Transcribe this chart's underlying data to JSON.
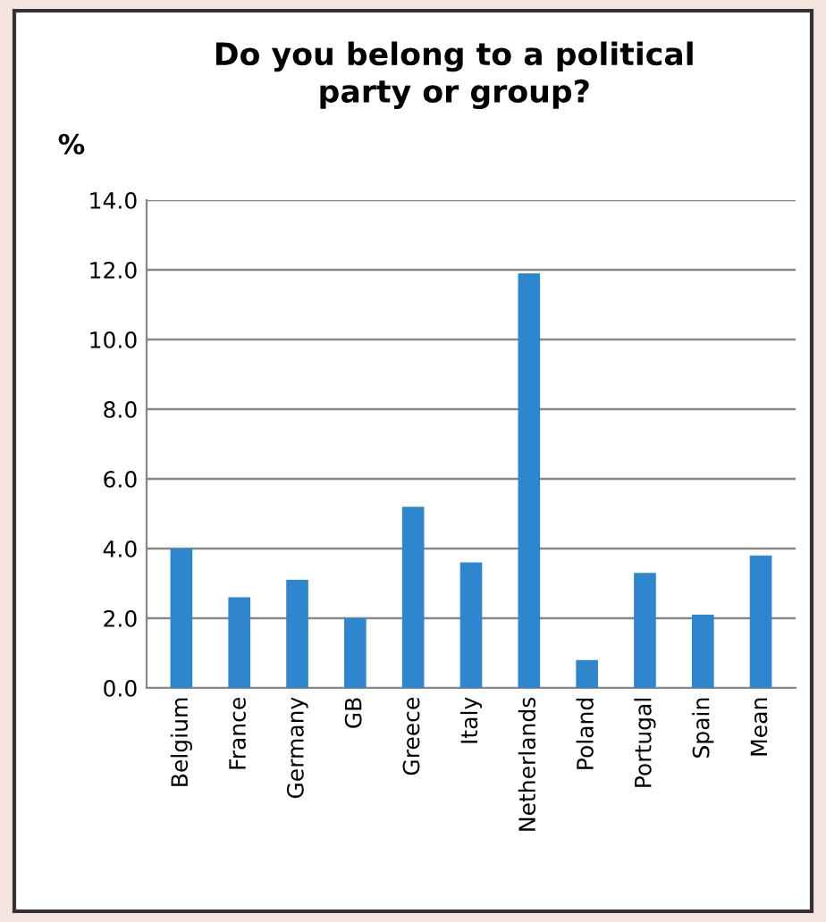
{
  "chart_data": {
    "type": "bar",
    "title": "Do you belong to a political\nparty or group?",
    "ylabel": "%",
    "categories": [
      "Belgium",
      "France",
      "Germany",
      "GB",
      "Greece",
      "Italy",
      "Netherlands",
      "Poland",
      "Portugal",
      "Spain",
      "Mean"
    ],
    "values": [
      4.0,
      2.6,
      3.1,
      2.0,
      5.2,
      3.6,
      11.9,
      0.8,
      3.3,
      2.1,
      3.8
    ],
    "color": "#2e86cf",
    "ylim": [
      0,
      14
    ],
    "yticks": [
      {
        "value": 0,
        "label": "0.0"
      },
      {
        "value": 2,
        "label": "2.0"
      },
      {
        "value": 4,
        "label": "4.0"
      },
      {
        "value": 6,
        "label": "6.0"
      },
      {
        "value": 8,
        "label": "8.0"
      },
      {
        "value": 10,
        "label": "10.0"
      },
      {
        "value": 12,
        "label": "12.0"
      },
      {
        "value": 14,
        "label": "14.0"
      }
    ],
    "grid": "y"
  }
}
